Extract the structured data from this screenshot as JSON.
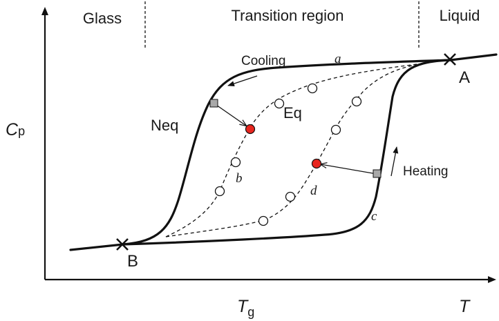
{
  "regions": {
    "glass": "Glass",
    "transition": "Transition region",
    "liquid": "Liquid"
  },
  "axes": {
    "y_label_main": "C",
    "y_label_sub": "p",
    "x_label": "T",
    "x_tick_main": "T",
    "x_tick_sub": "g"
  },
  "labels": {
    "cooling": "Cooling",
    "heating": "Heating",
    "neq": "Neq",
    "eq": "Eq",
    "point_a": "A",
    "point_b": "B",
    "curve_a": "a",
    "curve_b": "b",
    "curve_c": "c",
    "curve_d": "d"
  },
  "colors": {
    "line": "#111111",
    "state_point": "#e8261f",
    "marker_square": "#a9a9a9"
  }
}
